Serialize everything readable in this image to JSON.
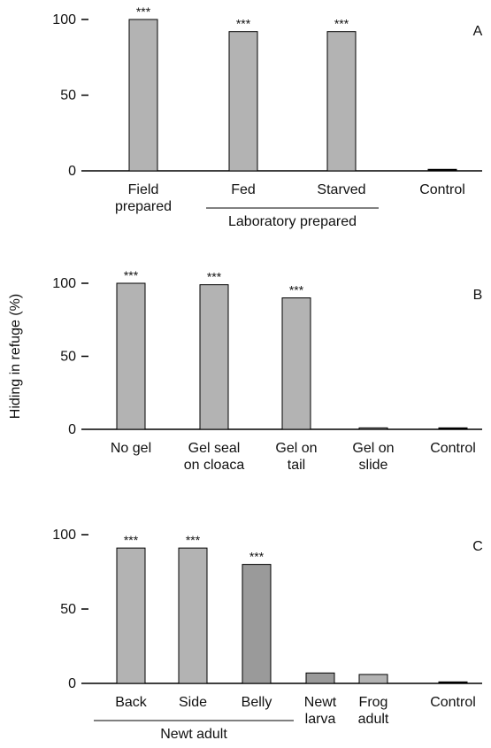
{
  "chart_data": [
    {
      "type": "bar",
      "panel_label": "A",
      "categories": [
        "Field\nprepared",
        "Fed",
        "Starved",
        "Control"
      ],
      "values": [
        100,
        92,
        92,
        1
      ],
      "colors": [
        "#b3b3b3",
        "#b3b3b3",
        "#b3b3b3",
        "#000000"
      ],
      "significance": [
        "***",
        "***",
        "***",
        null
      ],
      "groups": [
        {
          "label": "Laboratory prepared",
          "categories": [
            1,
            2
          ]
        }
      ],
      "ylim": [
        0,
        100
      ],
      "yticks": [
        0,
        50,
        100
      ]
    },
    {
      "type": "bar",
      "panel_label": "B",
      "ylabel": "Hiding in refuge (%)",
      "categories": [
        "No gel",
        "Gel seal\non cloaca",
        "Gel on\ntail",
        "Gel on\nslide",
        "Control"
      ],
      "values": [
        100,
        99,
        90,
        1,
        1
      ],
      "colors": [
        "#b3b3b3",
        "#b3b3b3",
        "#b3b3b3",
        "#a6a6a6",
        "#000000"
      ],
      "significance": [
        "***",
        "***",
        "***",
        null,
        null
      ],
      "groups": [],
      "ylim": [
        0,
        100
      ],
      "yticks": [
        0,
        50,
        100
      ]
    },
    {
      "type": "bar",
      "panel_label": "C",
      "categories": [
        "Back",
        "Side",
        "Belly",
        "Newt\nlarva",
        "Frog\nadult",
        "Control"
      ],
      "values": [
        91,
        91,
        80,
        7,
        6,
        1
      ],
      "colors": [
        "#b3b3b3",
        "#b3b3b3",
        "#9a9a9a",
        "#9a9a9a",
        "#b3b3b3",
        "#000000"
      ],
      "significance": [
        "***",
        "***",
        "***",
        null,
        null,
        null
      ],
      "groups": [
        {
          "label": "Newt adult",
          "categories": [
            0,
            2
          ]
        }
      ],
      "ylim": [
        0,
        100
      ],
      "yticks": [
        0,
        50,
        100
      ]
    }
  ]
}
